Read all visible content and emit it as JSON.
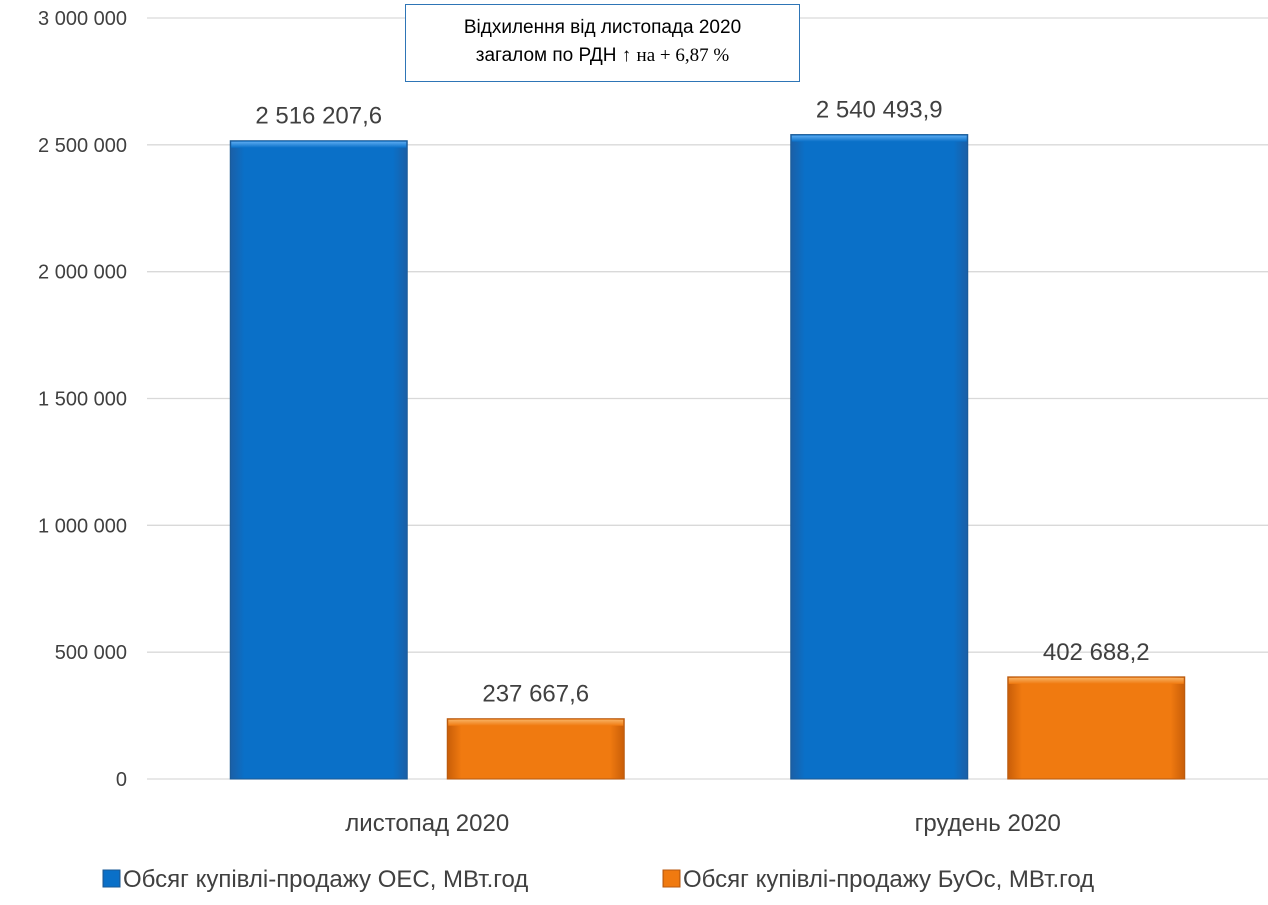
{
  "chart_data": {
    "type": "bar",
    "categories": [
      "листопад 2020",
      "грудень 2020"
    ],
    "series": [
      {
        "name": "Обсяг купівлі-продажу ОЕС, МВт.год",
        "values": [
          2516207.6,
          2540493.9
        ],
        "labels": [
          "2 516 207,6",
          "2 540 493,9"
        ],
        "color": "#0a70c8"
      },
      {
        "name": "Обсяг купівлі-продажу БуОс, МВт.год",
        "values": [
          237667.6,
          402688.2
        ],
        "labels": [
          "237 667,6",
          "402 688,2"
        ],
        "color": "#f07a10"
      }
    ],
    "ylim": [
      0,
      3000000
    ],
    "yticks": [
      0,
      500000,
      1000000,
      1500000,
      2000000,
      2500000,
      3000000
    ],
    "ytick_labels": [
      "0",
      "500 000",
      "1 000 000",
      "1 500 000",
      "2 000 000",
      "2 500 000",
      "3 000 000"
    ],
    "grid": true,
    "legend": "bottom",
    "annotation": {
      "line1": "Відхилення від листопада 2020",
      "line2_prefix": "загалом по РДН ↑",
      "line2_suffix": "на + 6,87 %"
    }
  }
}
